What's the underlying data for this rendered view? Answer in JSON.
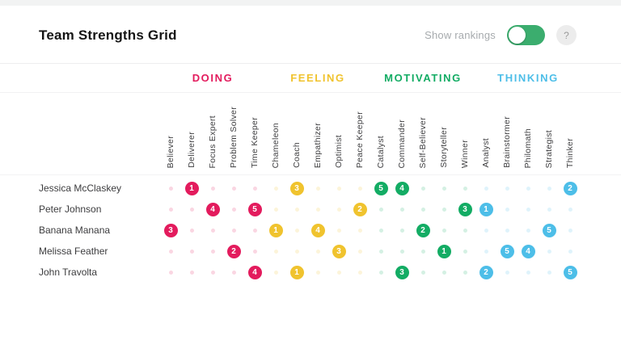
{
  "header": {
    "title": "Team Strengths Grid",
    "toggle_label": "Show rankings",
    "toggle_on": true,
    "help_label": "?"
  },
  "colors": {
    "toggle_green": "#3BAD6E",
    "help_bg": "#ececec",
    "help_text": "#9a9a9a"
  },
  "grid": {
    "categories": [
      {
        "label": "DOING",
        "color": "#E31B5D",
        "columns": [
          "Believer",
          "Deliverer",
          "Focus Expert",
          "Problem Solver",
          "Time Keeper"
        ]
      },
      {
        "label": "FEELING",
        "color": "#F0C32E",
        "columns": [
          "Chameleon",
          "Coach",
          "Empathizer",
          "Optimist",
          "Peace Keeper"
        ]
      },
      {
        "label": "MOTIVATING",
        "color": "#13AC64",
        "columns": [
          "Catalyst",
          "Commander",
          "Self-Believer",
          "Storyteller",
          "Winner"
        ]
      },
      {
        "label": "THINKING",
        "color": "#4DBEE8",
        "columns": [
          "Analyst",
          "Brainstormer",
          "Philomath",
          "Strategist",
          "Thinker"
        ]
      }
    ],
    "rows": [
      {
        "name": "Jessica McClaskey",
        "rankings": {
          "Deliverer": 1,
          "Coach": 3,
          "Catalyst": 5,
          "Commander": 4,
          "Thinker": 2
        }
      },
      {
        "name": "Peter Johnson",
        "rankings": {
          "Focus Expert": 4,
          "Time Keeper": 5,
          "Peace Keeper": 2,
          "Winner": 3,
          "Analyst": 1
        }
      },
      {
        "name": "Banana Manana",
        "rankings": {
          "Believer": 3,
          "Chameleon": 1,
          "Empathizer": 4,
          "Self-Believer": 2,
          "Strategist": 5
        }
      },
      {
        "name": "Melissa Feather",
        "rankings": {
          "Problem Solver": 2,
          "Optimist": 3,
          "Storyteller": 1,
          "Brainstormer": 5,
          "Philomath": 4
        }
      },
      {
        "name": "John Travolta",
        "rankings": {
          "Time Keeper": 4,
          "Coach": 1,
          "Commander": 3,
          "Analyst": 2,
          "Thinker": 5
        }
      }
    ]
  }
}
